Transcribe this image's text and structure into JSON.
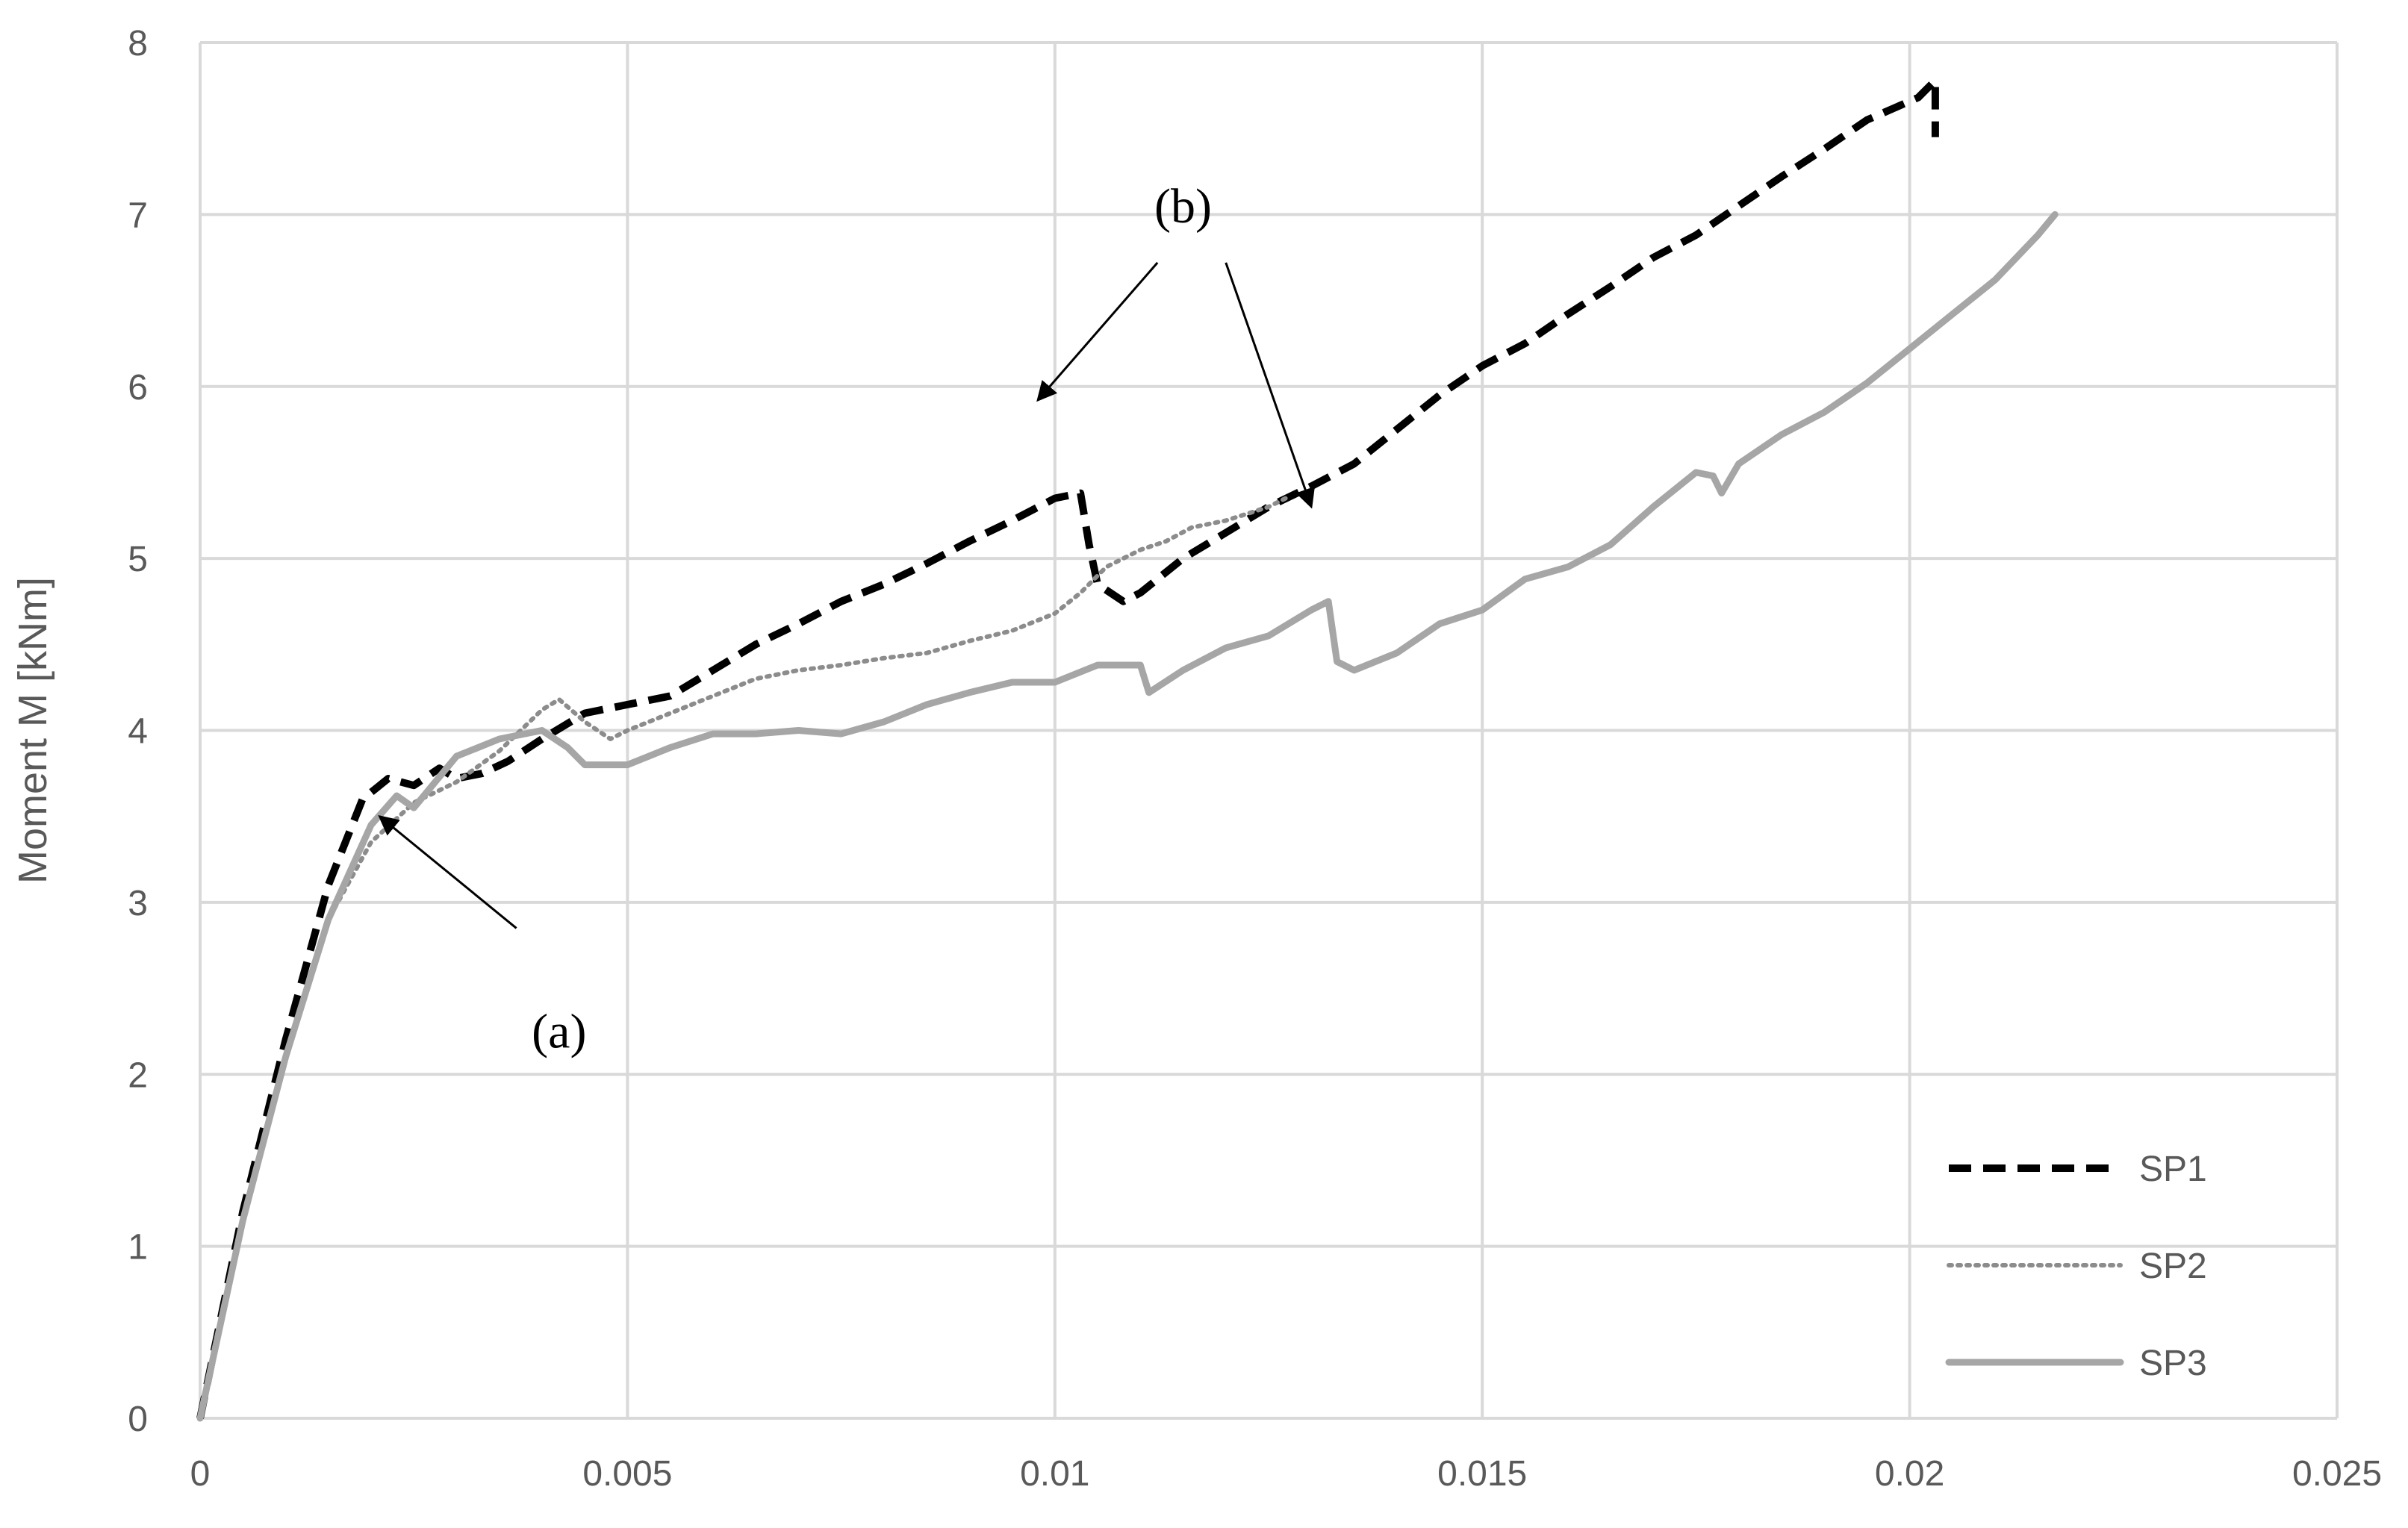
{
  "chart_data": {
    "type": "line",
    "title": "",
    "xlabel": "",
    "ylabel": "Moment M [kNm]",
    "xlim": [
      0,
      0.025
    ],
    "ylim": [
      0,
      8
    ],
    "x_ticks": [
      0,
      0.005,
      0.01,
      0.015,
      0.02,
      0.025
    ],
    "x_tick_labels": [
      "0",
      "0.005",
      "0.01",
      "0.015",
      "0.02",
      "0.025"
    ],
    "y_ticks": [
      0,
      1,
      2,
      3,
      4,
      5,
      6,
      7,
      8
    ],
    "y_tick_labels": [
      "0",
      "1",
      "2",
      "3",
      "4",
      "5",
      "6",
      "7",
      "8"
    ],
    "grid": true,
    "legend_position": "bottom-right",
    "series": [
      {
        "name": "SP1",
        "style": "dashed",
        "color": "#000000",
        "points": [
          [
            0,
            0
          ],
          [
            0.0005,
            1.2
          ],
          [
            0.001,
            2.2
          ],
          [
            0.0015,
            3.1
          ],
          [
            0.0019,
            3.6
          ],
          [
            0.0022,
            3.72
          ],
          [
            0.0025,
            3.68
          ],
          [
            0.0028,
            3.78
          ],
          [
            0.003,
            3.72
          ],
          [
            0.0033,
            3.75
          ],
          [
            0.0036,
            3.82
          ],
          [
            0.004,
            3.95
          ],
          [
            0.0045,
            4.1
          ],
          [
            0.005,
            4.15
          ],
          [
            0.0055,
            4.2
          ],
          [
            0.006,
            4.35
          ],
          [
            0.0065,
            4.5
          ],
          [
            0.007,
            4.62
          ],
          [
            0.0075,
            4.75
          ],
          [
            0.008,
            4.85
          ],
          [
            0.0085,
            4.97
          ],
          [
            0.009,
            5.1
          ],
          [
            0.0095,
            5.22
          ],
          [
            0.01,
            5.35
          ],
          [
            0.0103,
            5.38
          ],
          [
            0.0104,
            5.08
          ],
          [
            0.0105,
            4.85
          ],
          [
            0.0108,
            4.75
          ],
          [
            0.011,
            4.8
          ],
          [
            0.0115,
            5.0
          ],
          [
            0.012,
            5.15
          ],
          [
            0.0125,
            5.3
          ],
          [
            0.013,
            5.42
          ],
          [
            0.0135,
            5.55
          ],
          [
            0.014,
            5.75
          ],
          [
            0.0145,
            5.95
          ],
          [
            0.015,
            6.12
          ],
          [
            0.0155,
            6.25
          ],
          [
            0.016,
            6.42
          ],
          [
            0.0165,
            6.58
          ],
          [
            0.017,
            6.75
          ],
          [
            0.0175,
            6.88
          ],
          [
            0.018,
            7.05
          ],
          [
            0.0185,
            7.22
          ],
          [
            0.019,
            7.38
          ],
          [
            0.0195,
            7.55
          ],
          [
            0.0201,
            7.68
          ],
          [
            0.0203,
            7.78
          ],
          [
            0.0203,
            7.45
          ]
        ]
      },
      {
        "name": "SP2",
        "style": "dotted",
        "color": "#8c8c8c",
        "points": [
          [
            0,
            0
          ],
          [
            0.0005,
            1.15
          ],
          [
            0.001,
            2.1
          ],
          [
            0.0015,
            2.9
          ],
          [
            0.002,
            3.35
          ],
          [
            0.0025,
            3.58
          ],
          [
            0.003,
            3.7
          ],
          [
            0.0035,
            3.88
          ],
          [
            0.004,
            4.12
          ],
          [
            0.0042,
            4.18
          ],
          [
            0.0045,
            4.05
          ],
          [
            0.0048,
            3.95
          ],
          [
            0.005,
            4.0
          ],
          [
            0.0055,
            4.1
          ],
          [
            0.006,
            4.2
          ],
          [
            0.0065,
            4.3
          ],
          [
            0.007,
            4.35
          ],
          [
            0.0075,
            4.38
          ],
          [
            0.008,
            4.42
          ],
          [
            0.0085,
            4.45
          ],
          [
            0.009,
            4.52
          ],
          [
            0.0095,
            4.58
          ],
          [
            0.01,
            4.68
          ],
          [
            0.0103,
            4.8
          ],
          [
            0.0106,
            4.95
          ],
          [
            0.011,
            5.05
          ],
          [
            0.0113,
            5.1
          ],
          [
            0.0116,
            5.18
          ],
          [
            0.0118,
            5.2
          ],
          [
            0.012,
            5.22
          ],
          [
            0.0125,
            5.3
          ],
          [
            0.0127,
            5.35
          ]
        ]
      },
      {
        "name": "SP3",
        "style": "solid",
        "color": "#a6a6a6",
        "points": [
          [
            0,
            0
          ],
          [
            0.0005,
            1.15
          ],
          [
            0.001,
            2.1
          ],
          [
            0.0015,
            2.9
          ],
          [
            0.002,
            3.45
          ],
          [
            0.0023,
            3.62
          ],
          [
            0.0025,
            3.55
          ],
          [
            0.003,
            3.85
          ],
          [
            0.0035,
            3.95
          ],
          [
            0.004,
            4.0
          ],
          [
            0.0043,
            3.9
          ],
          [
            0.0045,
            3.8
          ],
          [
            0.005,
            3.8
          ],
          [
            0.0055,
            3.9
          ],
          [
            0.006,
            3.98
          ],
          [
            0.0065,
            3.98
          ],
          [
            0.007,
            4.0
          ],
          [
            0.0075,
            3.98
          ],
          [
            0.008,
            4.05
          ],
          [
            0.0085,
            4.15
          ],
          [
            0.009,
            4.22
          ],
          [
            0.0095,
            4.28
          ],
          [
            0.01,
            4.28
          ],
          [
            0.0105,
            4.38
          ],
          [
            0.011,
            4.38
          ],
          [
            0.0111,
            4.22
          ],
          [
            0.0115,
            4.35
          ],
          [
            0.012,
            4.48
          ],
          [
            0.0125,
            4.55
          ],
          [
            0.013,
            4.7
          ],
          [
            0.0132,
            4.75
          ],
          [
            0.0133,
            4.4
          ],
          [
            0.0135,
            4.35
          ],
          [
            0.014,
            4.45
          ],
          [
            0.0145,
            4.62
          ],
          [
            0.015,
            4.7
          ],
          [
            0.0155,
            4.88
          ],
          [
            0.016,
            4.95
          ],
          [
            0.0165,
            5.08
          ],
          [
            0.017,
            5.3
          ],
          [
            0.0175,
            5.5
          ],
          [
            0.0177,
            5.48
          ],
          [
            0.0178,
            5.38
          ],
          [
            0.018,
            5.55
          ],
          [
            0.0185,
            5.72
          ],
          [
            0.019,
            5.85
          ],
          [
            0.0195,
            6.02
          ],
          [
            0.02,
            6.22
          ],
          [
            0.0205,
            6.42
          ],
          [
            0.021,
            6.62
          ],
          [
            0.0215,
            6.88
          ],
          [
            0.0217,
            7.0
          ]
        ]
      }
    ],
    "annotations": [
      {
        "text": "(a)",
        "label_at": [
          0.0042,
          2.25
        ],
        "arrows": [
          [
            0.0037,
            2.85,
            0.0021,
            3.5
          ]
        ]
      },
      {
        "text": "(b)",
        "label_at": [
          0.0115,
          7.05
        ],
        "arrows": [
          [
            0.0112,
            6.72,
            0.0098,
            5.92
          ],
          [
            0.012,
            6.72,
            0.013,
            5.3
          ]
        ]
      }
    ]
  }
}
